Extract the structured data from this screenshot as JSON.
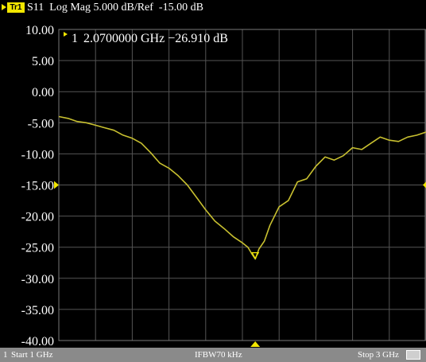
{
  "header": {
    "trace_label": "Tr1",
    "text": "S11  Log Mag 5.000 dB/Ref  -15.00 dB"
  },
  "marker": {
    "number": "1",
    "readout": "2.0700000 GHz −26.910 dB",
    "frequency_ghz": 2.07,
    "value_db": -26.91
  },
  "footer": {
    "channel": "1",
    "start": "Start 1 GHz",
    "ifbw": "IFBW70 kHz",
    "stop": "Stop 3 GHz"
  },
  "colors": {
    "background": "#000000",
    "grid": "#555555",
    "trace": "#c8c030",
    "marker": "#f2e600",
    "text": "#ffffff",
    "footer_bg": "#8a8a8a"
  },
  "chart_data": {
    "type": "line",
    "title": "S11  Log Mag 5.000 dB/Ref  -15.00 dB",
    "xlabel": "",
    "ylabel": "",
    "xlim": [
      1.0,
      3.0
    ],
    "ylim": [
      -40.0,
      10.0
    ],
    "x_divisions": 10,
    "reference_level": -15.0,
    "grid": true,
    "y_ticks": [
      "10.00",
      "5.00",
      "0.00",
      "-5.00",
      "-10.00",
      "-15.00",
      "-20.00",
      "-25.00",
      "-30.00",
      "-35.00",
      "-40.00"
    ],
    "y_tick_values": [
      10,
      5,
      0,
      -5,
      -10,
      -15,
      -20,
      -25,
      -30,
      -35,
      -40
    ],
    "series": [
      {
        "x": [
          1.0,
          1.05,
          1.1,
          1.15,
          1.2,
          1.25,
          1.3,
          1.35,
          1.4,
          1.45,
          1.5,
          1.55,
          1.6,
          1.65,
          1.7,
          1.75,
          1.8,
          1.85,
          1.9,
          1.95,
          2.0,
          2.03,
          2.05,
          2.07,
          2.09,
          2.12,
          2.15,
          2.2,
          2.25,
          2.3,
          2.35,
          2.4,
          2.45,
          2.5,
          2.55,
          2.6,
          2.65,
          2.7,
          2.75,
          2.8,
          2.85,
          2.9,
          2.95,
          3.0
        ],
        "y": [
          -4.0,
          -4.3,
          -4.8,
          -5.0,
          -5.4,
          -5.8,
          -6.2,
          -7.0,
          -7.5,
          -8.3,
          -9.8,
          -11.5,
          -12.3,
          -13.5,
          -15.0,
          -17.0,
          -19.0,
          -20.8,
          -22.0,
          -23.3,
          -24.3,
          -25.0,
          -26.0,
          -26.9,
          -25.3,
          -24.0,
          -21.5,
          -18.5,
          -17.5,
          -14.5,
          -14.0,
          -12.0,
          -10.5,
          -11.0,
          -10.3,
          -9.0,
          -9.3,
          -8.3,
          -7.3,
          -7.8,
          -8.0,
          -7.3,
          -7.0,
          -6.5
        ]
      }
    ]
  }
}
